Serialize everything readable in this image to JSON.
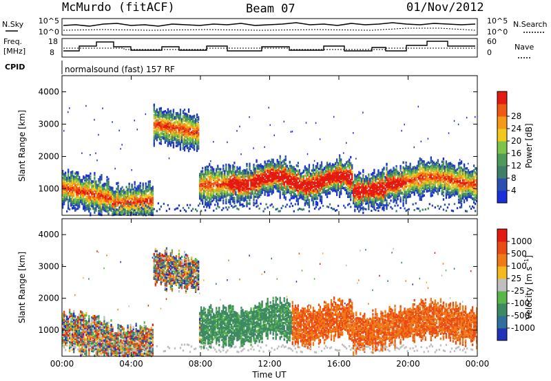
{
  "header": {
    "station": "McMurdo (fitACF)",
    "beam": "Beam 07",
    "date": "01/Nov/2012"
  },
  "noise_panel": {
    "left_label": "N.Sky",
    "right_label": "N.Search",
    "left_ticks": [
      "10^5",
      "10^0"
    ],
    "right_ticks": [
      "10^5",
      "10^0"
    ]
  },
  "freq_panel": {
    "left_label_line1": "Freq.",
    "left_label_line2": "[MHz]",
    "right_label": "Nave",
    "left_ticks": [
      "18",
      "8"
    ],
    "right_ticks": [
      "60",
      "0"
    ]
  },
  "cpid": {
    "label": "CPID",
    "text": "normalsound (fast) 157 RF"
  },
  "chart_data": [
    {
      "type": "heatmap",
      "ylabel": "Slant Range [km]",
      "ylim": [
        180,
        4500
      ],
      "yticks": [
        "1000",
        "2000",
        "3000",
        "4000"
      ],
      "colorbar": {
        "label": "Power [dB]",
        "ticks": [
          "4",
          "8",
          "12",
          "16",
          "20",
          "24",
          "28"
        ],
        "colors": [
          "#1a2fd8",
          "#2a4fb0",
          "#3f7f6a",
          "#4e9a58",
          "#7ec34a",
          "#f0c820",
          "#f59a18",
          "#ee5a12",
          "#e41a10"
        ]
      }
    },
    {
      "type": "heatmap",
      "ylabel": "Slant Range [km]",
      "ylim": [
        180,
        4500
      ],
      "yticks": [
        "1000",
        "2000",
        "3000",
        "4000"
      ],
      "colorbar": {
        "label": "Velocity [m s⁻¹]",
        "unit_text": "m s",
        "unit_sup": "-1",
        "ticks": [
          "1000",
          "500",
          "100",
          "25",
          "-25",
          "-100",
          "-500",
          "-1000"
        ],
        "colors": [
          "#1f33b8",
          "#2f6f9a",
          "#3d8a62",
          "#58b847",
          "#bfbfbf",
          "#f4b820",
          "#f07a18",
          "#ea4a14",
          "#e21a12"
        ]
      }
    }
  ],
  "xaxis": {
    "label": "Time UT",
    "ticks": [
      "00:00",
      "04:00",
      "08:00",
      "12:00",
      "16:00",
      "20:00",
      "00:00"
    ]
  }
}
